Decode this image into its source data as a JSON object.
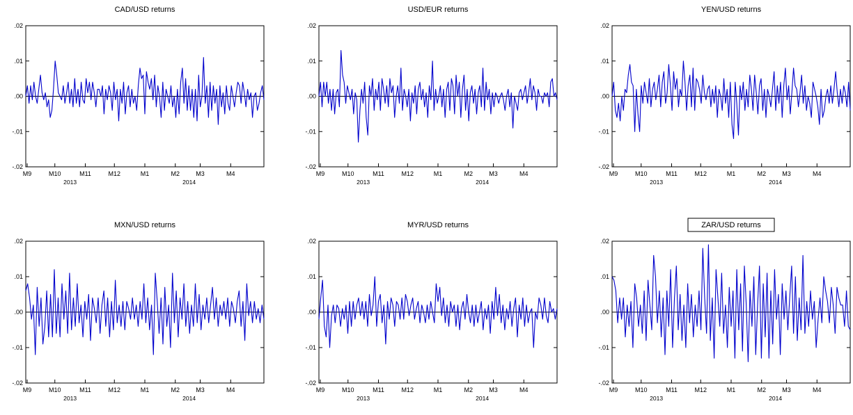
{
  "colors": {
    "series": "#0000cc",
    "zero_line": "#000000",
    "frame": "#000000"
  },
  "chart_data": [
    {
      "type": "line",
      "title": "CAD/USD returns",
      "title_boxed": false,
      "ylim": [
        -0.02,
        0.02
      ],
      "yticks": [
        ".02",
        ".01",
        ".00",
        "-.01",
        "-.02"
      ],
      "ytick_values": [
        0.02,
        0.01,
        0.0,
        -0.01,
        -0.02
      ],
      "xlim": [
        0,
        172
      ],
      "xticks": [
        "M9",
        "M10",
        "M11",
        "M12",
        "M1",
        "M2",
        "M3",
        "M4"
      ],
      "xtick_positions": [
        1,
        21,
        43,
        64,
        86,
        108,
        126,
        148
      ],
      "years": [
        "2013",
        "2014"
      ],
      "year_positions": [
        32,
        118
      ],
      "grid": false,
      "x": "observation index (daily)",
      "values": [
        0.0,
        0.003,
        -0.002,
        0.003,
        -0.001,
        0.004,
        0.0,
        -0.002,
        0.002,
        0.006,
        0.001,
        -0.001,
        0.001,
        -0.003,
        -0.001,
        -0.006,
        -0.004,
        0.002,
        0.01,
        0.006,
        0.001,
        0.0,
        -0.001,
        0.003,
        -0.002,
        0.001,
        0.004,
        -0.002,
        0.002,
        -0.003,
        0.005,
        -0.002,
        0.002,
        -0.003,
        0.004,
        -0.001,
        -0.002,
        0.005,
        0.001,
        0.004,
        -0.001,
        0.004,
        0.001,
        -0.003,
        0.002,
        0.002,
        0.0,
        0.003,
        -0.005,
        0.002,
        -0.001,
        0.003,
        0.001,
        -0.004,
        0.004,
        -0.001,
        0.002,
        -0.007,
        0.002,
        -0.002,
        0.004,
        -0.005,
        0.001,
        0.003,
        -0.003,
        0.002,
        -0.002,
        0.0,
        -0.004,
        0.003,
        0.008,
        0.005,
        0.006,
        -0.005,
        0.007,
        0.004,
        0.002,
        0.005,
        -0.001,
        0.006,
        -0.003,
        0.003,
        0.0,
        -0.006,
        0.004,
        -0.004,
        0.002,
        0.0,
        -0.002,
        0.003,
        -0.003,
        0.0,
        -0.006,
        0.002,
        -0.005,
        0.004,
        0.008,
        -0.002,
        0.005,
        -0.004,
        0.003,
        -0.004,
        0.002,
        -0.006,
        0.002,
        -0.007,
        0.006,
        -0.003,
        0.0,
        0.011,
        -0.002,
        0.003,
        -0.006,
        0.004,
        -0.004,
        0.003,
        -0.002,
        0.002,
        -0.008,
        0.003,
        -0.003,
        0.001,
        -0.005,
        0.003,
        -0.002,
        -0.004,
        0.003,
        0.0,
        -0.003,
        0.001,
        0.004,
        0.003,
        -0.002,
        0.004,
        0.001,
        -0.003,
        0.002,
        -0.001,
        0.001,
        -0.006,
        0.0,
        0.001,
        -0.004,
        -0.002,
        0.001,
        0.003,
        -0.001
      ]
    },
    {
      "type": "line",
      "title": "USD/EUR returns",
      "title_boxed": false,
      "ylim": [
        -0.02,
        0.02
      ],
      "yticks": [
        ".02",
        ".01",
        ".00",
        "-.01",
        "-.02"
      ],
      "ytick_values": [
        0.02,
        0.01,
        0.0,
        -0.01,
        -0.02
      ],
      "xlim": [
        0,
        172
      ],
      "xticks": [
        "M9",
        "M10",
        "M11",
        "M12",
        "M1",
        "M2",
        "M3",
        "M4"
      ],
      "xtick_positions": [
        1,
        21,
        43,
        64,
        86,
        108,
        126,
        148
      ],
      "years": [
        "2013",
        "2014"
      ],
      "year_positions": [
        32,
        118
      ],
      "grid": false,
      "values": [
        0.0,
        0.004,
        -0.003,
        0.004,
        0.0,
        0.004,
        -0.002,
        0.002,
        -0.004,
        0.002,
        -0.005,
        0.001,
        0.002,
        -0.003,
        0.013,
        0.006,
        0.004,
        -0.002,
        0.003,
        0.001,
        -0.001,
        0.002,
        -0.005,
        0.001,
        -0.001,
        -0.013,
        -0.004,
        0.002,
        -0.002,
        0.004,
        -0.006,
        -0.011,
        0.003,
        0.0,
        0.005,
        -0.004,
        0.002,
        -0.001,
        0.004,
        -0.004,
        0.005,
        0.002,
        -0.002,
        0.003,
        -0.003,
        0.005,
        0.001,
        0.003,
        -0.006,
        0.0,
        0.003,
        -0.002,
        0.008,
        -0.004,
        0.002,
        0.0,
        -0.003,
        0.002,
        -0.007,
        0.001,
        -0.002,
        0.003,
        -0.005,
        0.002,
        0.004,
        -0.001,
        0.002,
        -0.003,
        0.001,
        -0.006,
        0.003,
        -0.001,
        0.01,
        -0.004,
        0.002,
        -0.002,
        0.0,
        0.003,
        -0.003,
        0.002,
        -0.006,
        0.002,
        0.004,
        -0.004,
        0.005,
        0.003,
        -0.005,
        0.006,
        0.0,
        0.004,
        -0.006,
        0.002,
        0.006,
        -0.004,
        0.002,
        -0.007,
        0.001,
        0.003,
        -0.002,
        0.002,
        -0.005,
        0.001,
        0.003,
        -0.003,
        0.008,
        -0.004,
        0.004,
        -0.001,
        0.002,
        -0.005,
        0.001,
        -0.003,
        0.001,
        0.0,
        -0.002,
        0.0,
        0.001,
        -0.001,
        -0.004,
        0.0,
        0.002,
        -0.003,
        0.001,
        -0.009,
        0.0,
        -0.002,
        -0.004,
        0.001,
        0.002,
        -0.001,
        0.001,
        0.003,
        -0.002,
        0.001,
        0.005,
        -0.001,
        0.003,
        0.001,
        -0.004,
        0.002,
        0.0,
        0.0,
        -0.002,
        0.001,
        0.0,
        0.001,
        -0.003,
        0.004,
        0.005,
        0.0,
        0.001,
        -0.001
      ]
    },
    {
      "type": "line",
      "title": "YEN/USD returns",
      "title_boxed": false,
      "ylim": [
        -0.02,
        0.02
      ],
      "yticks": [
        ".02",
        ".01",
        ".00",
        "-.01",
        "-.02"
      ],
      "ytick_values": [
        0.02,
        0.01,
        0.0,
        -0.01,
        -0.02
      ],
      "xlim": [
        0,
        172
      ],
      "xticks": [
        "M9",
        "M10",
        "M11",
        "M12",
        "M1",
        "M2",
        "M3",
        "M4"
      ],
      "xtick_positions": [
        1,
        21,
        43,
        64,
        86,
        108,
        126,
        148
      ],
      "years": [
        "2013",
        "2014"
      ],
      "year_positions": [
        32,
        118
      ],
      "grid": false,
      "values": [
        0.0,
        0.004,
        -0.004,
        -0.006,
        -0.002,
        -0.007,
        0.0,
        -0.004,
        0.002,
        0.001,
        0.006,
        0.009,
        0.004,
        0.003,
        -0.01,
        0.002,
        -0.005,
        -0.01,
        0.003,
        -0.002,
        0.004,
        0.001,
        -0.002,
        0.005,
        -0.003,
        0.002,
        0.004,
        -0.001,
        0.002,
        0.006,
        -0.003,
        0.004,
        0.007,
        -0.002,
        0.001,
        0.009,
        0.003,
        -0.004,
        0.007,
        0.002,
        0.005,
        -0.003,
        0.002,
        0.0,
        0.01,
        0.004,
        -0.004,
        0.003,
        0.006,
        -0.003,
        0.008,
        -0.004,
        0.005,
        0.004,
        0.002,
        -0.002,
        0.006,
        0.001,
        -0.001,
        0.002,
        0.003,
        -0.003,
        0.002,
        -0.002,
        0.003,
        -0.006,
        0.002,
        0.0,
        -0.004,
        0.005,
        -0.002,
        0.002,
        -0.006,
        0.004,
        -0.008,
        -0.012,
        0.004,
        -0.002,
        -0.011,
        0.003,
        -0.001,
        0.004,
        -0.004,
        0.002,
        -0.003,
        0.006,
        0.002,
        -0.004,
        0.006,
        0.001,
        -0.005,
        0.003,
        0.005,
        -0.004,
        0.002,
        -0.006,
        0.002,
        0.0,
        -0.003,
        0.002,
        0.007,
        -0.004,
        0.003,
        -0.002,
        0.004,
        -0.006,
        0.003,
        0.008,
        -0.001,
        0.003,
        -0.005,
        0.001,
        0.008,
        0.003,
        0.002,
        -0.003,
        0.001,
        0.006,
        -0.002,
        0.003,
        -0.004,
        0.0,
        -0.002,
        -0.006,
        0.004,
        0.002,
        0.0,
        -0.003,
        -0.008,
        0.002,
        -0.006,
        -0.004,
        0.0,
        0.002,
        -0.002,
        0.003,
        -0.002,
        0.002,
        0.007,
        0.001,
        -0.003,
        0.002,
        -0.002,
        0.003,
        0.001,
        -0.003,
        0.004,
        -0.004
      ]
    },
    {
      "type": "line",
      "title": "MXN/USD returns",
      "title_boxed": false,
      "ylim": [
        -0.02,
        0.02
      ],
      "yticks": [
        ".02",
        ".01",
        ".00",
        "-.01",
        "-.02"
      ],
      "ytick_values": [
        0.02,
        0.01,
        0.0,
        -0.01,
        -0.02
      ],
      "xlim": [
        0,
        172
      ],
      "xticks": [
        "M9",
        "M10",
        "M11",
        "M12",
        "M1",
        "M2",
        "M3",
        "M4"
      ],
      "xtick_positions": [
        1,
        21,
        43,
        64,
        86,
        108,
        126,
        148
      ],
      "years": [
        "2013",
        "2014"
      ],
      "year_positions": [
        32,
        118
      ],
      "grid": false,
      "values": [
        0.006,
        0.008,
        0.004,
        -0.002,
        0.002,
        -0.012,
        0.007,
        -0.004,
        0.004,
        -0.009,
        -0.004,
        0.006,
        -0.007,
        0.005,
        -0.007,
        0.012,
        -0.006,
        0.004,
        -0.007,
        0.008,
        -0.002,
        0.006,
        -0.006,
        0.011,
        -0.005,
        0.004,
        -0.004,
        0.008,
        -0.003,
        0.002,
        -0.007,
        0.003,
        -0.002,
        0.005,
        -0.008,
        0.004,
        0.001,
        -0.003,
        0.004,
        -0.006,
        0.002,
        0.006,
        -0.004,
        0.004,
        -0.007,
        0.003,
        -0.005,
        0.009,
        -0.003,
        0.002,
        -0.004,
        0.003,
        -0.005,
        0.003,
        0.001,
        -0.002,
        0.004,
        -0.002,
        0.002,
        -0.004,
        0.003,
        -0.002,
        0.008,
        -0.003,
        0.004,
        -0.005,
        0.002,
        -0.012,
        0.011,
        0.003,
        -0.006,
        0.004,
        -0.009,
        0.007,
        -0.004,
        0.002,
        -0.01,
        0.011,
        -0.003,
        0.006,
        -0.007,
        0.004,
        -0.002,
        0.008,
        -0.004,
        0.003,
        -0.006,
        0.002,
        -0.004,
        0.008,
        -0.003,
        0.005,
        -0.005,
        0.002,
        -0.002,
        0.004,
        -0.003,
        0.002,
        0.007,
        -0.002,
        0.004,
        -0.004,
        0.002,
        -0.001,
        0.003,
        -0.002,
        0.004,
        -0.004,
        0.003,
        0.001,
        -0.003,
        0.003,
        0.006,
        -0.004,
        0.003,
        -0.008,
        0.008,
        -0.001,
        0.003,
        -0.003,
        0.003,
        -0.002,
        0.001,
        -0.003,
        0.002,
        -0.002
      ]
    },
    {
      "type": "line",
      "title": "MYR/USD returns",
      "title_boxed": false,
      "ylim": [
        -0.02,
        0.02
      ],
      "yticks": [
        ".02",
        ".01",
        ".00",
        "-.01",
        "-.02"
      ],
      "ytick_values": [
        0.02,
        0.01,
        0.0,
        -0.01,
        -0.02
      ],
      "xlim": [
        0,
        172
      ],
      "xticks": [
        "M9",
        "M10",
        "M11",
        "M12",
        "M1",
        "M2",
        "M3",
        "M4"
      ],
      "xtick_positions": [
        1,
        21,
        43,
        64,
        86,
        108,
        126,
        148
      ],
      "years": [
        "2013",
        "2014"
      ],
      "year_positions": [
        32,
        118
      ],
      "grid": false,
      "values": [
        -0.002,
        0.004,
        0.009,
        -0.004,
        -0.007,
        0.002,
        -0.01,
        -0.001,
        0.002,
        -0.003,
        0.002,
        0.001,
        -0.004,
        0.001,
        -0.002,
        0.002,
        -0.006,
        0.003,
        -0.004,
        0.003,
        -0.002,
        0.002,
        0.004,
        -0.001,
        0.003,
        -0.002,
        0.003,
        -0.004,
        0.005,
        -0.001,
        0.002,
        0.01,
        -0.004,
        0.003,
        0.005,
        -0.003,
        0.002,
        -0.009,
        0.003,
        -0.002,
        0.004,
        0.002,
        -0.004,
        0.003,
        0.002,
        -0.002,
        0.004,
        -0.002,
        0.005,
        0.003,
        -0.001,
        0.002,
        0.004,
        -0.002,
        0.001,
        0.003,
        -0.003,
        0.002,
        0.0,
        -0.003,
        0.002,
        -0.002,
        0.003,
        0.0,
        -0.003,
        0.008,
        0.003,
        0.007,
        -0.001,
        0.004,
        -0.003,
        0.002,
        -0.004,
        0.003,
        0.0,
        0.002,
        -0.004,
        0.002,
        -0.005,
        0.001,
        0.003,
        -0.002,
        0.005,
        0.0,
        -0.003,
        0.002,
        -0.004,
        0.002,
        -0.003,
        0.0,
        0.003,
        -0.005,
        0.001,
        -0.002,
        0.002,
        -0.006,
        0.003,
        -0.002,
        0.007,
        -0.001,
        0.005,
        -0.003,
        0.002,
        -0.005,
        0.001,
        -0.002,
        0.003,
        -0.004,
        0.001,
        0.004,
        -0.007,
        0.002,
        -0.002,
        0.004,
        -0.004,
        0.002,
        -0.003,
        0.0,
        0.001,
        -0.01,
        0.0,
        -0.002,
        0.004,
        0.002,
        -0.002,
        0.004,
        -0.001,
        -0.003,
        0.003,
        0.0,
        0.001,
        -0.002,
        0.001
      ]
    },
    {
      "type": "line",
      "title": "ZAR/USD returns",
      "title_boxed": true,
      "ylim": [
        -0.02,
        0.02
      ],
      "yticks": [
        ".02",
        ".01",
        ".00",
        "-.01",
        "-.02"
      ],
      "ytick_values": [
        0.02,
        0.01,
        0.0,
        -0.01,
        -0.02
      ],
      "xlim": [
        0,
        172
      ],
      "xticks": [
        "M9",
        "M10",
        "M11",
        "M12",
        "M1",
        "M2",
        "M3",
        "M4"
      ],
      "xtick_positions": [
        1,
        21,
        43,
        64,
        86,
        108,
        126,
        148
      ],
      "years": [
        "2013",
        "2014"
      ],
      "year_positions": [
        32,
        118
      ],
      "grid": false,
      "values": [
        0.01,
        0.009,
        0.006,
        -0.003,
        0.004,
        -0.002,
        0.004,
        -0.007,
        0.002,
        -0.004,
        0.003,
        -0.01,
        0.008,
        0.004,
        -0.004,
        0.002,
        -0.006,
        0.006,
        -0.008,
        0.009,
        0.002,
        -0.005,
        0.016,
        0.01,
        -0.003,
        0.006,
        -0.007,
        0.004,
        -0.012,
        0.006,
        -0.004,
        0.012,
        -0.01,
        0.004,
        0.013,
        -0.005,
        0.005,
        -0.008,
        0.002,
        -0.01,
        0.008,
        -0.003,
        0.005,
        -0.007,
        0.002,
        -0.004,
        0.006,
        -0.005,
        0.018,
        0.004,
        -0.006,
        0.019,
        -0.008,
        0.004,
        -0.013,
        0.012,
        0.004,
        -0.004,
        0.011,
        -0.006,
        0.002,
        -0.01,
        0.007,
        -0.004,
        0.006,
        -0.013,
        0.012,
        -0.005,
        0.008,
        -0.011,
        0.013,
        0.002,
        -0.014,
        0.006,
        -0.004,
        0.01,
        -0.012,
        0.002,
        0.013,
        -0.013,
        0.008,
        -0.007,
        0.011,
        -0.013,
        0.006,
        -0.009,
        0.012,
        -0.002,
        0.005,
        -0.012,
        0.008,
        -0.002,
        0.006,
        -0.005,
        0.004,
        0.013,
        -0.006,
        0.01,
        -0.008,
        0.004,
        -0.005,
        0.016,
        -0.006,
        0.003,
        -0.004,
        0.006,
        -0.002,
        0.003,
        -0.01,
        -0.002,
        0.004,
        -0.003,
        0.01,
        0.006,
        0.003,
        -0.003,
        0.007,
        0.002,
        -0.006,
        0.007,
        0.004,
        0.002,
        0.002,
        -0.004,
        0.006,
        -0.004,
        -0.005
      ]
    }
  ]
}
